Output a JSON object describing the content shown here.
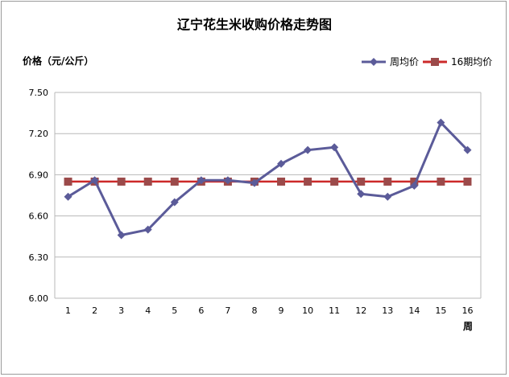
{
  "chart_data": {
    "type": "line",
    "title": "辽宁花生米收购价格走势图",
    "ylabel": "价格（元/公斤）",
    "xlabel": "周",
    "categories": [
      "1",
      "2",
      "3",
      "4",
      "5",
      "6",
      "7",
      "8",
      "9",
      "10",
      "11",
      "12",
      "13",
      "14",
      "15",
      "16"
    ],
    "yticks": [
      "6.00",
      "6.30",
      "6.60",
      "6.90",
      "7.20",
      "7.50"
    ],
    "ylim": [
      6.0,
      7.5
    ],
    "grid": true,
    "legend_position": "top-right",
    "series": [
      {
        "name": "周均价",
        "color": "#5b5b99",
        "marker": "diamond",
        "values": [
          6.74,
          6.86,
          6.46,
          6.5,
          6.7,
          6.86,
          6.86,
          6.84,
          6.98,
          7.08,
          7.1,
          6.76,
          6.74,
          6.82,
          7.28,
          7.08
        ]
      },
      {
        "name": "16期均价",
        "color": "#cc2929",
        "marker": "square",
        "marker_color": "#9b4a4a",
        "values": [
          6.85,
          6.85,
          6.85,
          6.85,
          6.85,
          6.85,
          6.85,
          6.85,
          6.85,
          6.85,
          6.85,
          6.85,
          6.85,
          6.85,
          6.85,
          6.85
        ]
      }
    ]
  }
}
